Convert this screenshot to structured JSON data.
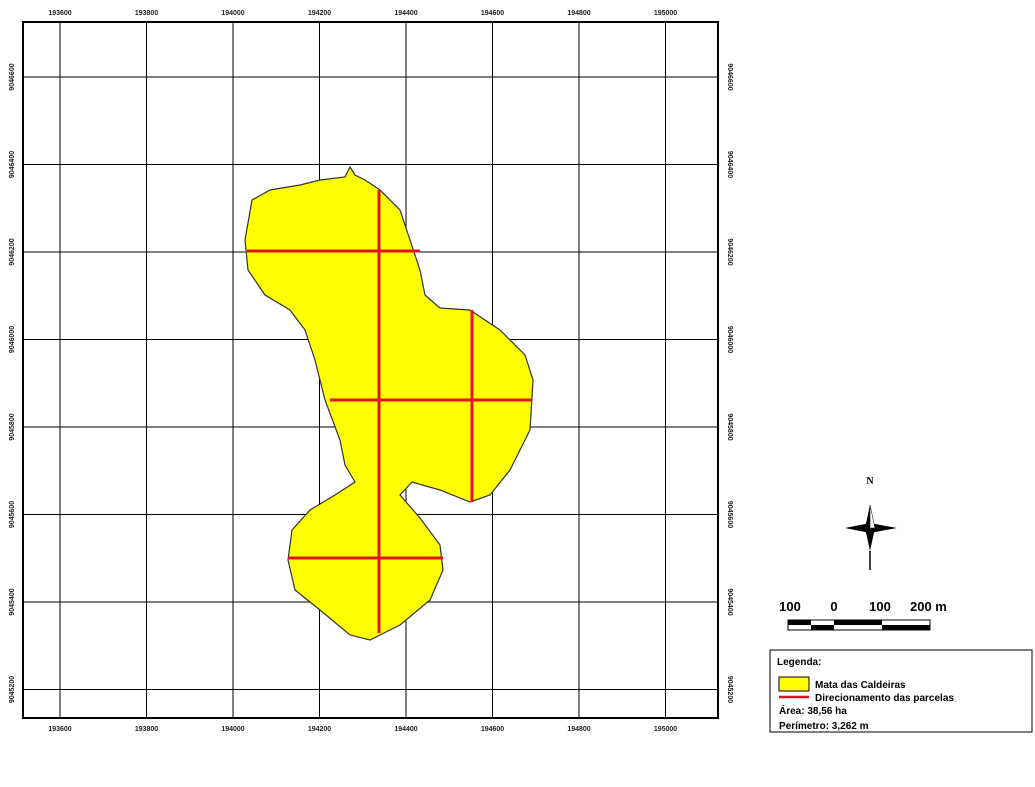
{
  "map": {
    "x_labels": [
      "193600",
      "193800",
      "194000",
      "194200",
      "194400",
      "194600",
      "194800",
      "195000"
    ],
    "y_labels": [
      "9046600",
      "9046400",
      "9046200",
      "9046000",
      "9045800",
      "9045600",
      "9045400",
      "9045200"
    ]
  },
  "north": "N",
  "scale_bar": {
    "labels": [
      "100",
      "0",
      "100",
      "200 m"
    ]
  },
  "legend": {
    "title": "Legenda:",
    "items": [
      "Mata das Caldeiras",
      "Direcionamento das parcelas"
    ],
    "area": "Área: 38,56 ha",
    "perimeter": "Perímetro: 3,262 m"
  }
}
